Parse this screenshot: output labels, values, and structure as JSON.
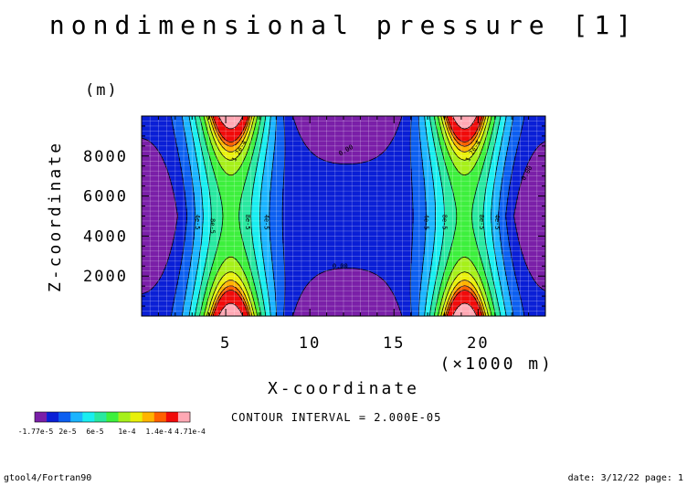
{
  "chart_data": {
    "type": "heatmap",
    "subtype": "filled-contour",
    "title": "nondimensional pressure [1]",
    "xlabel": "X-coordinate",
    "xunit": "(×1000 m)",
    "ylabel": "Z-coordinate",
    "yunit": "(m)",
    "xlim": [
      0,
      24
    ],
    "ylim": [
      0,
      10000
    ],
    "xticks": [
      "5",
      "10",
      "15",
      "20"
    ],
    "yticks": [
      "2000",
      "4000",
      "6000",
      "8000"
    ],
    "xtick_values": [
      5,
      10,
      15,
      20
    ],
    "ytick_values": [
      2000,
      4000,
      6000,
      8000
    ],
    "grid": true,
    "contour_interval_text": "CONTOUR INTERVAL = 2.000E-05",
    "colorbar": {
      "labels": [
        "-1.77e-5",
        "2e-5",
        "6e-5",
        "1e-4",
        "1.4e-4",
        "4.71e-4"
      ],
      "colors": [
        "#7a1fa8",
        "#0a1fd6",
        "#0c5ff0",
        "#1ab4ff",
        "#19eef0",
        "#28e8a0",
        "#3df03d",
        "#a6f01a",
        "#e8f00a",
        "#ffb400",
        "#ff6000",
        "#f00a0a",
        "#ffa8b4"
      ],
      "levels": [
        -1.77e-05,
        0,
        2e-05,
        4e-05,
        6e-05,
        8e-05,
        0.0001,
        0.00012,
        0.00014,
        0.00016,
        0.00018,
        0.0002,
        0.0003,
        0.000471
      ]
    },
    "field": {
      "description_formula": "p(x,z) estimated from the rendered contours: strong maxima near x=5.3 and x=19.2 (×1000 m) at z≈0 and z≈10000 m; minima near x=12 at top/bottom and near x=0/24 at mid-height",
      "max_value": 0.000471,
      "min_value": -1.77e-05
    },
    "contour_labels": [
      {
        "text": "4e-5",
        "x": 3.2,
        "z": 4700,
        "rot": 90
      },
      {
        "text": "8e-5",
        "x": 4.1,
        "z": 4500,
        "rot": 90
      },
      {
        "text": "8e-5",
        "x": 6.2,
        "z": 4700,
        "rot": 90
      },
      {
        "text": "4e-5",
        "x": 7.3,
        "z": 4700,
        "rot": 90
      },
      {
        "text": "1.2e-4",
        "x": 5.9,
        "z": 8200,
        "rot": -60
      },
      {
        "text": "0.00",
        "x": 12.2,
        "z": 8200,
        "rot": -30
      },
      {
        "text": "0.00",
        "x": 11.8,
        "z": 2400,
        "rot": 0
      },
      {
        "text": "4e-5",
        "x": 16.8,
        "z": 4700,
        "rot": 90
      },
      {
        "text": "8e-5",
        "x": 17.9,
        "z": 4700,
        "rot": 90
      },
      {
        "text": "8e-5",
        "x": 20.1,
        "z": 4700,
        "rot": 90
      },
      {
        "text": "4e-5",
        "x": 21.0,
        "z": 4700,
        "rot": 90
      },
      {
        "text": "1.2e-4",
        "x": 19.8,
        "z": 8200,
        "rot": -60
      },
      {
        "text": "0.00",
        "x": 23.0,
        "z": 7100,
        "rot": -60
      }
    ]
  },
  "footer": {
    "left": "gtool4/Fortran90",
    "right": "date: 3/12/22 page: 1"
  }
}
